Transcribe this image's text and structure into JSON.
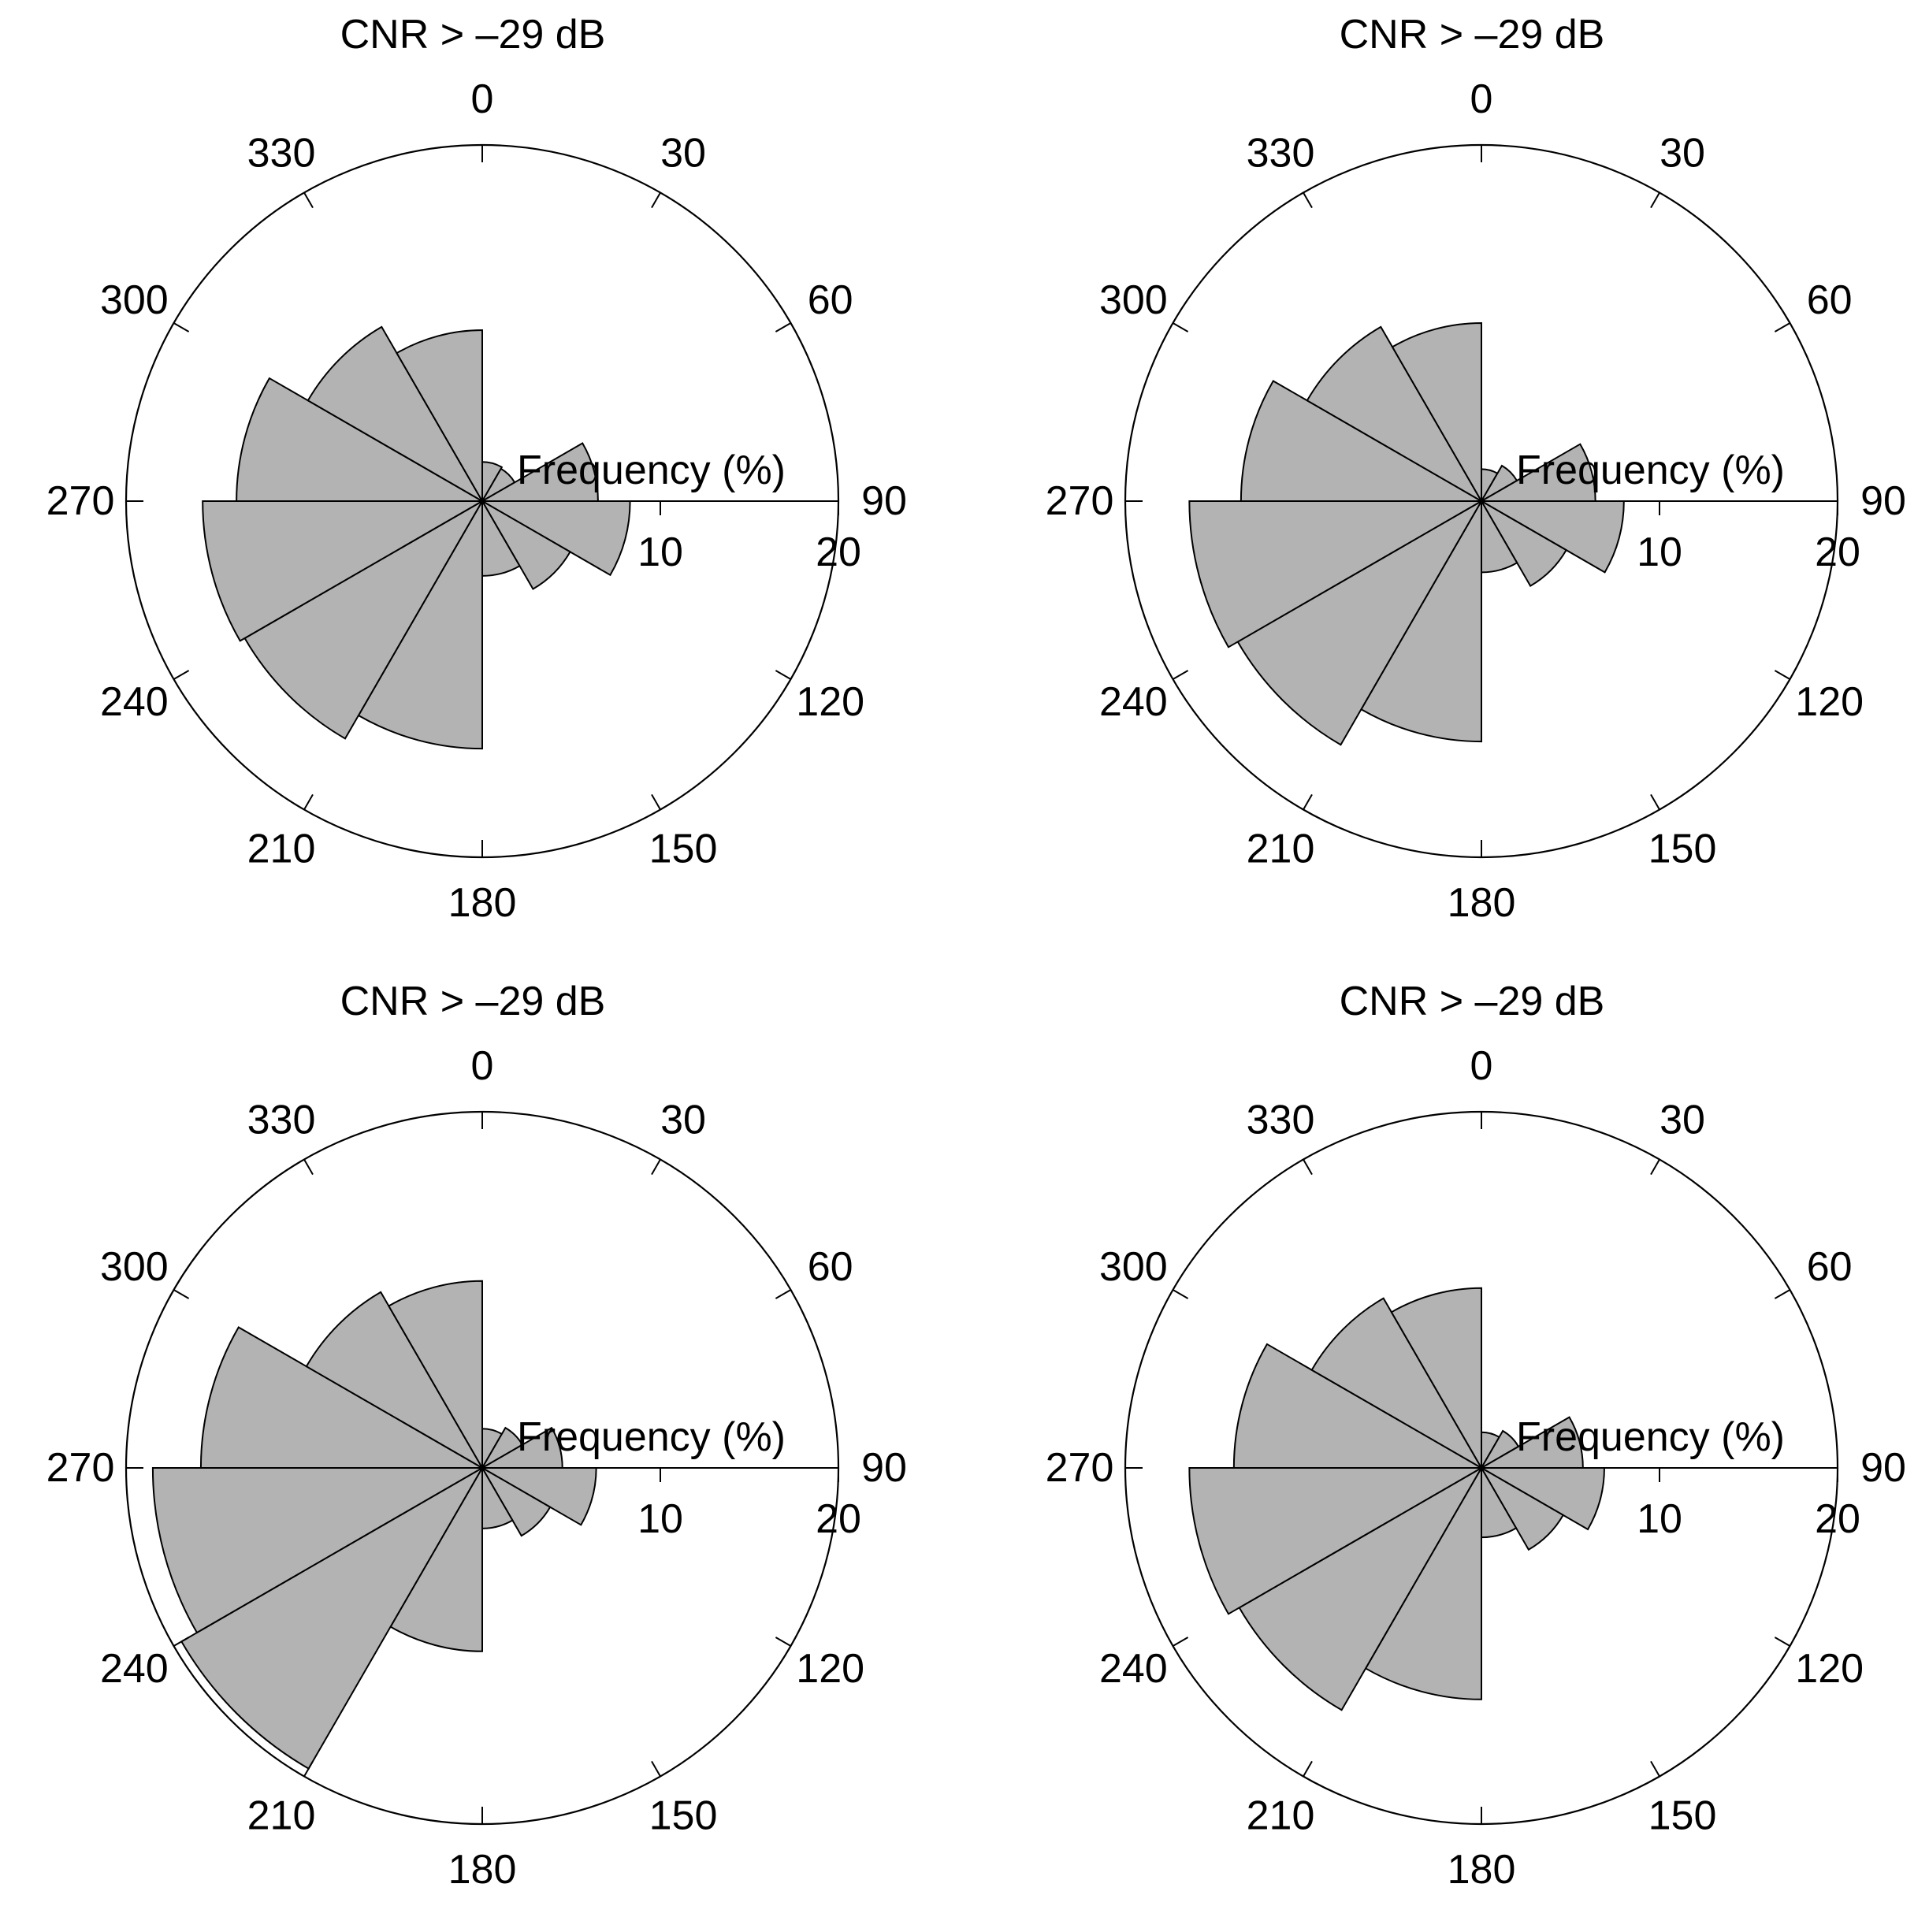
{
  "colors": {
    "bar_fill": "#b3b3b3",
    "stroke": "#000000",
    "background": "#ffffff"
  },
  "chart_data": [
    {
      "type": "polar-bar",
      "title": "CNR > –29  dB",
      "radial_label": "Frequency (%)",
      "radial_ticks": [
        "10",
        "20"
      ],
      "rlim": [
        0,
        20
      ],
      "angle_labels": [
        "0",
        "30",
        "60",
        "90",
        "120",
        "150",
        "180",
        "210",
        "240",
        "270",
        "300",
        "330"
      ],
      "sector_width_deg": 30,
      "sector_centers_deg": [
        15,
        45,
        75,
        105,
        135,
        165,
        195,
        225,
        255,
        285,
        315,
        345
      ],
      "values": [
        2.2,
        2.1,
        6.5,
        8.3,
        5.7,
        4.2,
        13.9,
        15.4,
        15.7,
        13.8,
        11.3,
        9.6
      ]
    },
    {
      "type": "polar-bar",
      "title": "CNR >  –29  dB",
      "radial_label": "Frequency (%)",
      "radial_ticks": [
        "10",
        "20"
      ],
      "rlim": [
        0,
        20
      ],
      "angle_labels": [
        "0",
        "30",
        "60",
        "90",
        "120",
        "150",
        "180",
        "210",
        "240",
        "270",
        "300",
        "330"
      ],
      "sector_width_deg": 30,
      "sector_centers_deg": [
        15,
        45,
        75,
        105,
        135,
        165,
        195,
        225,
        255,
        285,
        315,
        345
      ],
      "values": [
        1.8,
        2.3,
        6.4,
        8.0,
        5.5,
        4.0,
        13.5,
        15.8,
        16.4,
        13.5,
        11.3,
        10.0
      ]
    },
    {
      "type": "polar-bar",
      "title": "CNR > –29  dB",
      "radial_label": "Frequency (%)",
      "radial_ticks": [
        "10",
        "20"
      ],
      "rlim": [
        0,
        20
      ],
      "angle_labels": [
        "0",
        "30",
        "60",
        "90",
        "120",
        "150",
        "180",
        "210",
        "240",
        "270",
        "300",
        "330"
      ],
      "sector_width_deg": 30,
      "sector_centers_deg": [
        15,
        45,
        75,
        105,
        135,
        165,
        195,
        225,
        255,
        285,
        315,
        345
      ],
      "values": [
        2.2,
        2.6,
        4.5,
        6.4,
        4.4,
        3.4,
        10.3,
        19.5,
        18.5,
        15.8,
        11.4,
        10.5
      ]
    },
    {
      "type": "polar-bar",
      "title": "CNR > –29  dB",
      "radial_label": "Frequency (%)",
      "radial_ticks": [
        "10",
        "20"
      ],
      "rlim": [
        0,
        20
      ],
      "angle_labels": [
        "0",
        "30",
        "60",
        "90",
        "120",
        "150",
        "180",
        "210",
        "240",
        "270",
        "300",
        "330"
      ],
      "sector_width_deg": 30,
      "sector_centers_deg": [
        15,
        45,
        75,
        105,
        135,
        165,
        195,
        225,
        255,
        285,
        315,
        345
      ],
      "values": [
        2.0,
        2.4,
        5.7,
        6.9,
        5.3,
        3.9,
        13.0,
        15.7,
        16.4,
        13.9,
        11.0,
        10.1
      ]
    }
  ]
}
